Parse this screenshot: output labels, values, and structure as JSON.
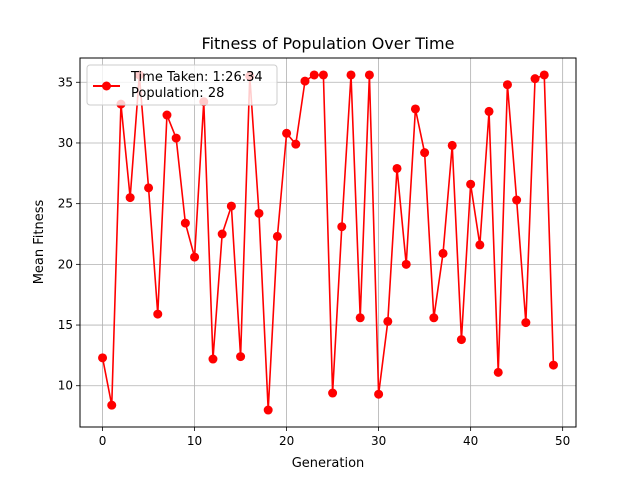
{
  "chart_data": {
    "type": "line",
    "title": "Fitness of Population Over Time",
    "xlabel": "Generation",
    "ylabel": "Mean Fitness",
    "xlim": [
      -2.45,
      51.45
    ],
    "ylim": [
      6.6,
      37.0
    ],
    "xticks": [
      0,
      10,
      20,
      30,
      40,
      50
    ],
    "yticks": [
      10,
      15,
      20,
      25,
      30,
      35
    ],
    "grid": true,
    "legend_position": "top-left",
    "legend_lines": [
      "Time Taken: 1:26:34",
      "Population: 28"
    ],
    "color": "#ff0000",
    "series": [
      {
        "x": [
          0,
          1,
          2,
          3,
          4,
          5,
          6,
          7,
          8,
          9,
          10,
          11,
          12,
          13,
          14,
          15,
          16,
          17,
          18,
          19,
          20,
          21,
          22,
          23,
          24,
          25,
          26,
          27,
          28,
          29,
          30,
          31,
          32,
          33,
          34,
          35,
          36,
          37,
          38,
          39,
          40,
          41,
          42,
          43,
          44,
          45,
          46,
          47,
          48,
          49
        ],
        "values": [
          12.3,
          8.4,
          33.2,
          25.5,
          35.6,
          26.3,
          15.9,
          32.3,
          30.4,
          23.4,
          20.6,
          33.4,
          12.2,
          22.5,
          24.8,
          12.4,
          35.5,
          24.2,
          8.0,
          22.3,
          30.8,
          29.9,
          35.1,
          35.6,
          35.6,
          9.4,
          23.1,
          35.6,
          15.6,
          35.6,
          9.3,
          15.3,
          27.9,
          20.0,
          32.8,
          29.2,
          15.6,
          20.9,
          29.8,
          13.8,
          26.6,
          21.6,
          32.6,
          11.1,
          34.8,
          25.3,
          15.2,
          35.3,
          35.6,
          11.7
        ]
      }
    ]
  }
}
